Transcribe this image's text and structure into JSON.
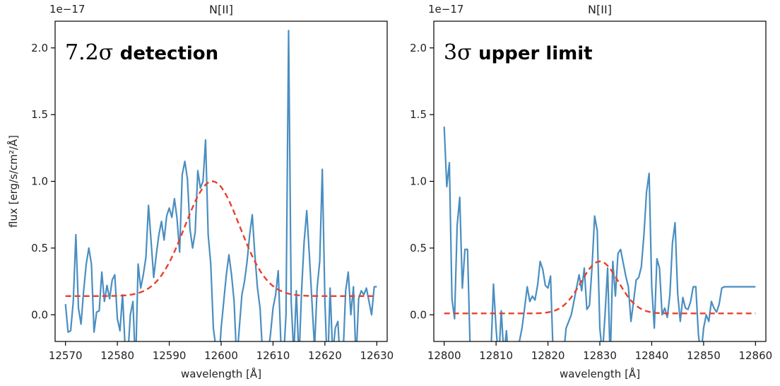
{
  "chart_data": [
    {
      "type": "line",
      "title": "N[II]",
      "xlabel": "wavelength [Å]",
      "ylabel": "flux [erg/s/cm²/Å]",
      "y_offset_label": "1e−17",
      "annotation": {
        "prefix": "7.2σ",
        "text": "detection"
      },
      "xlim": [
        12568,
        12632
      ],
      "ylim": [
        -0.2,
        2.2
      ],
      "xticks": [
        12570,
        12580,
        12590,
        12600,
        12610,
        12620,
        12630
      ],
      "xtick_labels": [
        "12570",
        "12580",
        "12590",
        "12600",
        "12610",
        "12620",
        "12630"
      ],
      "yticks": [
        0.0,
        0.5,
        1.0,
        1.5,
        2.0
      ],
      "ytick_labels": [
        "0.0",
        "0.5",
        "1.0",
        "1.5",
        "2.0"
      ],
      "series": [
        {
          "kind": "data",
          "color": "#4a8ec0",
          "x": [
            12570,
            12570.5,
            12571,
            12571.5,
            12572,
            12572.5,
            12573,
            12573.5,
            12574,
            12574.5,
            12575,
            12575.5,
            12576,
            12576.5,
            12577,
            12577.5,
            12578,
            12578.5,
            12579,
            12579.5,
            12580,
            12580.5,
            12581,
            12581.5,
            12582,
            12582.5,
            12583,
            12583.5,
            12584,
            12584.5,
            12585,
            12585.5,
            12586,
            12586.5,
            12587,
            12587.5,
            12588,
            12588.5,
            12589,
            12589.5,
            12590,
            12590.5,
            12591,
            12591.5,
            12592,
            12592.5,
            12593,
            12593.5,
            12594,
            12594.5,
            12595,
            12595.5,
            12596,
            12596.5,
            12597,
            12597.5,
            12598,
            12598.5,
            12599,
            12599.5,
            12600,
            12600.5,
            12601,
            12601.5,
            12602,
            12602.5,
            12603,
            12603.5,
            12604,
            12604.5,
            12605,
            12605.5,
            12606,
            12606.5,
            12607,
            12607.5,
            12608,
            12608.5,
            12609,
            12609.5,
            12610,
            12610.5,
            12611,
            12611.5,
            12612,
            12612.5,
            12613,
            12613.5,
            12614,
            12614.5,
            12615,
            12615.5,
            12616,
            12616.5,
            12617,
            12617.5,
            12618,
            12618.5,
            12619,
            12619.5,
            12620,
            12620.5,
            12621,
            12621.5,
            12622,
            12622.5,
            12623,
            12623.5,
            12624,
            12624.5,
            12625,
            12625.5,
            12626,
            12626.5,
            12627,
            12627.5,
            12628,
            12628.5,
            12629,
            12629.5,
            12630
          ],
          "y": [
            0.08,
            -0.13,
            -0.12,
            0.1,
            0.6,
            0.05,
            -0.07,
            0.18,
            0.38,
            0.5,
            0.38,
            -0.13,
            0.02,
            0.03,
            0.32,
            0.1,
            0.22,
            0.12,
            0.26,
            0.3,
            -0.03,
            -0.12,
            0.15,
            -0.25,
            -0.32,
            0.0,
            0.1,
            -0.4,
            0.38,
            0.2,
            0.3,
            0.43,
            0.82,
            0.55,
            0.28,
            0.45,
            0.6,
            0.7,
            0.56,
            0.74,
            0.8,
            0.73,
            0.87,
            0.72,
            0.47,
            1.05,
            1.15,
            1.02,
            0.64,
            0.5,
            0.62,
            1.08,
            0.95,
            1.0,
            1.31,
            0.6,
            0.38,
            -0.1,
            -0.25,
            -0.4,
            -0.1,
            0.1,
            0.3,
            0.45,
            0.3,
            0.1,
            -0.35,
            -0.1,
            0.15,
            0.25,
            0.4,
            0.6,
            0.75,
            0.45,
            0.2,
            0.05,
            -0.3,
            -0.45,
            -0.3,
            -0.15,
            0.05,
            0.15,
            0.33,
            -0.2,
            -0.35,
            0.0,
            2.13,
            0.1,
            -0.3,
            0.18,
            -0.35,
            0.18,
            0.55,
            0.78,
            0.45,
            0.1,
            -0.25,
            0.2,
            0.4,
            1.09,
            0.1,
            -0.45,
            0.2,
            -0.3,
            -0.1,
            -0.05,
            -0.4,
            -0.3,
            0.18,
            0.32,
            0.0,
            0.21,
            -0.35,
            0.12,
            0.18,
            0.15,
            0.2,
            0.1,
            0.0,
            0.21,
            0.21
          ],
          "dashed": false
        },
        {
          "kind": "fit",
          "color": "#e8402b",
          "dashed": true,
          "gaussian": {
            "baseline": 0.14,
            "amplitude": 0.86,
            "center": 12598.3,
            "sigma": 5.3,
            "x_range": [
              12570,
              12630
            ]
          }
        }
      ],
      "grid": false,
      "legend": "none"
    },
    {
      "type": "line",
      "title": "N[II]",
      "xlabel": "wavelength [Å]",
      "y_offset_label": "1e−17",
      "annotation": {
        "prefix": "3σ",
        "text": "upper limit"
      },
      "xlim": [
        12798,
        12862
      ],
      "ylim": [
        -0.2,
        2.2
      ],
      "xticks": [
        12800,
        12810,
        12820,
        12830,
        12840,
        12850,
        12860
      ],
      "xtick_labels": [
        "12800",
        "12810",
        "12820",
        "12830",
        "12840",
        "12850",
        "12860"
      ],
      "yticks": [
        0.0,
        0.5,
        1.0,
        1.5,
        2.0
      ],
      "ytick_labels": [
        "0.0",
        "0.5",
        "1.0",
        "1.5",
        "2.0"
      ],
      "series": [
        {
          "kind": "data",
          "color": "#4a8ec0",
          "x": [
            12800,
            12800.5,
            12801,
            12801.5,
            12802,
            12802.5,
            12803,
            12803.5,
            12804,
            12804.5,
            12805,
            12805.5,
            12806,
            12806.5,
            12807,
            12807.5,
            12808,
            12808.5,
            12809,
            12809.5,
            12810,
            12810.5,
            12811,
            12811.5,
            12812,
            12812.5,
            12813,
            12813.5,
            12814,
            12814.5,
            12815,
            12815.5,
            12816,
            12816.5,
            12817,
            12817.5,
            12818,
            12818.5,
            12819,
            12819.5,
            12820,
            12820.5,
            12821,
            12821.5,
            12822,
            12822.5,
            12823,
            12823.5,
            12824,
            12824.5,
            12825,
            12825.5,
            12826,
            12826.5,
            12827,
            12827.5,
            12828,
            12828.5,
            12829,
            12829.5,
            12830,
            12830.5,
            12831,
            12831.5,
            12832,
            12832.5,
            12833,
            12833.5,
            12834,
            12834.5,
            12835,
            12835.5,
            12836,
            12836.5,
            12837,
            12837.5,
            12838,
            12838.5,
            12839,
            12839.5,
            12840,
            12840.5,
            12841,
            12841.5,
            12842,
            12842.5,
            12843,
            12843.5,
            12844,
            12844.5,
            12845,
            12845.5,
            12846,
            12846.5,
            12847,
            12847.5,
            12848,
            12848.5,
            12849,
            12849.5,
            12850,
            12850.5,
            12851,
            12851.5,
            12852,
            12852.5,
            12853,
            12853.5,
            12854,
            12854.5,
            12855,
            12855.5,
            12856,
            12856.5,
            12857,
            12857.5,
            12858,
            12858.5,
            12859,
            12859.5,
            12860
          ],
          "y": [
            1.41,
            0.96,
            1.14,
            0.12,
            -0.03,
            0.67,
            0.88,
            0.2,
            0.49,
            0.49,
            -0.25,
            -0.4,
            -0.45,
            -0.35,
            -0.3,
            -0.4,
            -0.45,
            -0.35,
            -0.3,
            0.23,
            -0.1,
            -0.35,
            0.03,
            -0.3,
            -0.12,
            -0.4,
            -0.45,
            -0.35,
            -0.3,
            -0.2,
            -0.1,
            0.05,
            0.21,
            0.1,
            0.14,
            0.11,
            0.22,
            0.4,
            0.34,
            0.22,
            0.2,
            0.29,
            -0.3,
            -0.45,
            -0.4,
            -0.35,
            -0.3,
            -0.1,
            -0.05,
            0.0,
            0.1,
            0.2,
            0.3,
            0.18,
            0.35,
            0.04,
            0.07,
            0.36,
            0.74,
            0.63,
            -0.1,
            -0.3,
            0.0,
            0.35,
            -0.35,
            0.4,
            0.14,
            0.46,
            0.49,
            0.39,
            0.29,
            0.21,
            -0.05,
            0.1,
            0.26,
            0.28,
            0.36,
            0.6,
            0.92,
            1.06,
            0.21,
            -0.1,
            0.42,
            0.35,
            0.0,
            0.05,
            -0.02,
            0.15,
            0.54,
            0.69,
            0.16,
            -0.05,
            0.13,
            0.05,
            0.04,
            0.1,
            0.21,
            0.21,
            -0.15,
            -0.3,
            -0.1,
            0.0,
            -0.05,
            0.1,
            0.05,
            0.02,
            0.08,
            0.2,
            0.21,
            0.21,
            0.21,
            0.21,
            0.21,
            0.21,
            0.21,
            0.21,
            0.21,
            0.21,
            0.21,
            0.21,
            0.21
          ],
          "dashed": false
        },
        {
          "kind": "fit",
          "color": "#e8402b",
          "dashed": true,
          "gaussian": {
            "baseline": 0.01,
            "amplitude": 0.39,
            "center": 12830.0,
            "sigma": 3.6,
            "x_range": [
              12800,
              12860
            ]
          }
        }
      ],
      "grid": false,
      "legend": "none"
    }
  ]
}
